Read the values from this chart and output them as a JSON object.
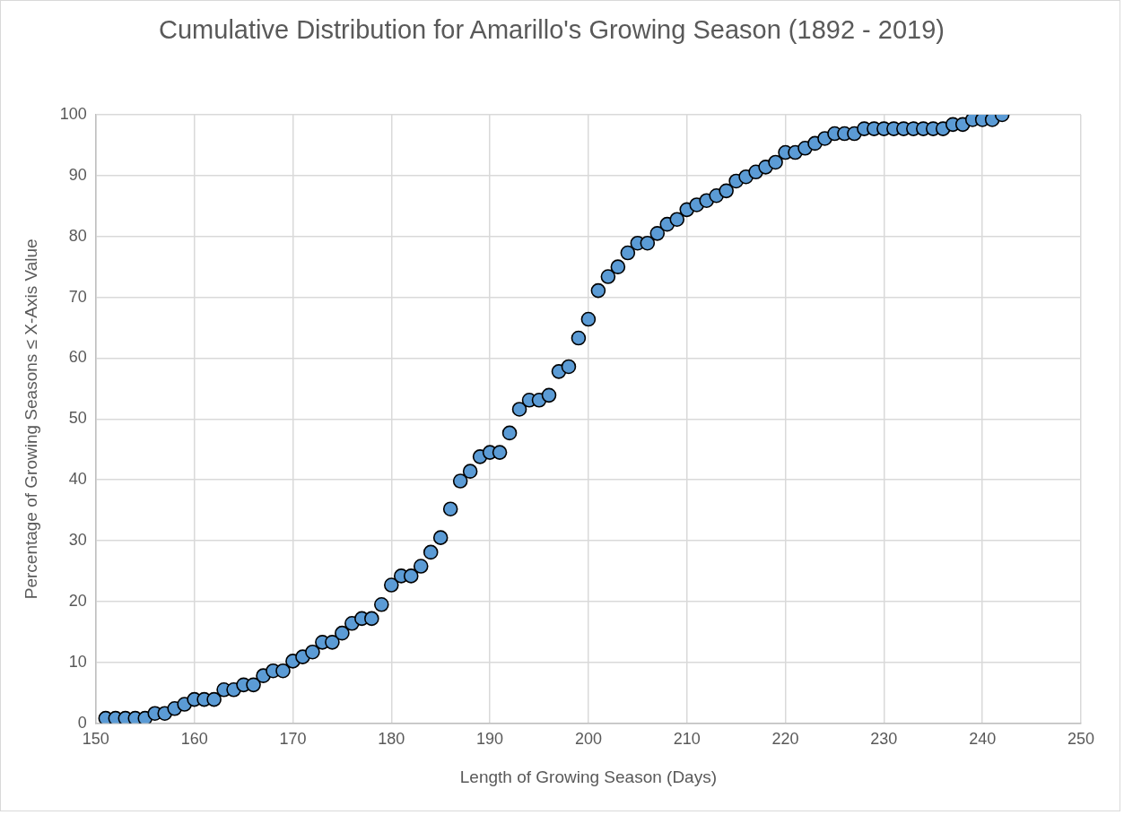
{
  "chart_data": {
    "type": "scatter",
    "title": "Cumulative Distribution for Amarillo's Growing Season (1892 - 2019)",
    "xlabel": "Length of Growing Season (Days)",
    "ylabel": "Percentage of Growing Seasons ≤ X-Axis Value",
    "x": [
      151,
      152,
      153,
      154,
      155,
      156,
      157,
      158,
      159,
      160,
      161,
      162,
      163,
      164,
      165,
      166,
      167,
      168,
      169,
      170,
      171,
      172,
      173,
      174,
      175,
      176,
      177,
      178,
      179,
      180,
      181,
      182,
      183,
      184,
      185,
      186,
      187,
      188,
      189,
      190,
      191,
      192,
      193,
      194,
      195,
      196,
      197,
      198,
      199,
      200,
      201,
      202,
      203,
      204,
      205,
      206,
      207,
      208,
      209,
      210,
      211,
      212,
      213,
      214,
      215,
      216,
      217,
      218,
      219,
      220,
      221,
      222,
      223,
      224,
      225,
      226,
      227,
      228,
      229,
      230,
      231,
      232,
      233,
      234,
      235,
      236,
      237,
      238,
      239,
      240,
      241,
      242
    ],
    "series": [
      {
        "color": "#5b9bd5",
        "values": [
          0.8,
          0.8,
          0.8,
          0.8,
          0.8,
          1.6,
          1.6,
          2.4,
          3.1,
          3.9,
          3.9,
          3.9,
          5.5,
          5.5,
          6.3,
          6.3,
          7.8,
          8.6,
          8.6,
          10.2,
          10.9,
          11.7,
          13.3,
          13.3,
          14.8,
          16.4,
          17.2,
          17.2,
          19.5,
          22.7,
          24.2,
          24.2,
          25.8,
          28.1,
          30.5,
          35.2,
          39.8,
          41.4,
          43.8,
          44.5,
          44.5,
          47.7,
          51.6,
          53.1,
          53.1,
          53.9,
          57.8,
          58.6,
          63.3,
          66.4,
          71.1,
          73.4,
          75.0,
          77.3,
          78.9,
          78.9,
          80.5,
          82.0,
          82.8,
          84.4,
          85.2,
          85.9,
          86.7,
          87.5,
          89.1,
          89.8,
          90.6,
          91.4,
          92.2,
          93.8,
          93.8,
          94.5,
          95.3,
          96.1,
          96.9,
          96.9,
          96.9,
          97.7,
          97.7,
          97.7,
          97.7,
          97.7,
          97.7,
          97.7,
          97.7,
          97.7,
          98.4,
          98.4,
          99.2,
          99.2,
          99.2,
          100
        ]
      }
    ],
    "xlim": [
      150,
      250
    ],
    "xticks": [
      150,
      160,
      170,
      180,
      190,
      200,
      210,
      220,
      230,
      240,
      250
    ],
    "ylim": [
      0,
      100
    ],
    "yticks": [
      0,
      10,
      20,
      30,
      40,
      50,
      60,
      70,
      80,
      90,
      100
    ],
    "grid": true,
    "legend": false,
    "marker": "circle"
  }
}
